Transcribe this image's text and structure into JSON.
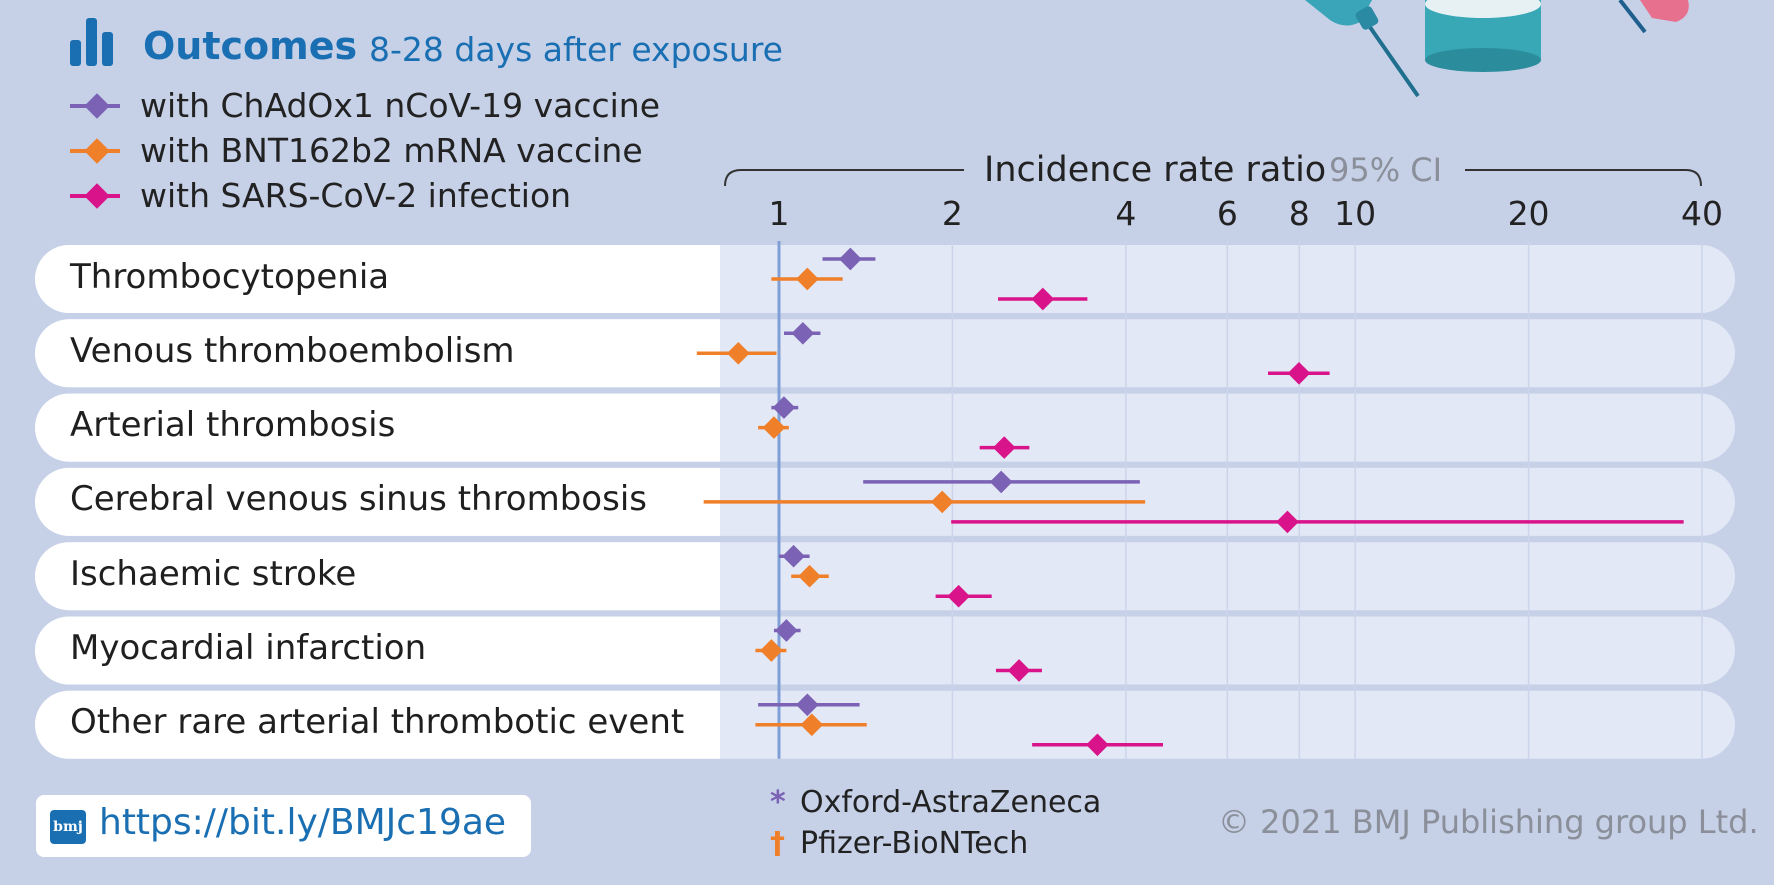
{
  "header": {
    "title": "Outcomes",
    "subtitle": "8-28 days after exposure"
  },
  "legend": [
    {
      "label": "with ChAdOx1 nCoV-19 vaccine",
      "color": "#7b62b4"
    },
    {
      "label": "with BNT162b2 mRNA vaccine",
      "color": "#f07f2a"
    },
    {
      "label": "with SARS-CoV-2 infection",
      "color": "#d9148a"
    }
  ],
  "chart_data": {
    "type": "scatter",
    "subtype": "forest-plot",
    "xlabel": "Incidence rate ratio",
    "xlabel_note": "95% CI",
    "x_scale": "log",
    "xlim": [
      0.85,
      40
    ],
    "x_ticks": [
      1,
      2,
      4,
      6,
      8,
      10,
      20,
      40
    ],
    "x_tick_labels": [
      "1",
      "2",
      "4",
      "6",
      "8",
      "10",
      "20",
      "40"
    ],
    "reference_line": 1,
    "grid": true,
    "categories": [
      "Thrombocytopenia",
      "Venous thromboembolism",
      "Arterial thrombosis",
      "Cerebral venous sinus thrombosis",
      "Ischaemic stroke",
      "Myocardial infarction",
      "Other rare arterial thrombotic event"
    ],
    "series": [
      {
        "name": "with ChAdOx1 nCoV-19 vaccine",
        "color": "#7b62b4",
        "estimates": [
          1.33,
          1.1,
          1.02,
          2.43,
          1.06,
          1.03,
          1.12
        ],
        "ci_low": [
          1.19,
          1.02,
          0.97,
          1.4,
          1.0,
          0.98,
          0.92
        ],
        "ci_high": [
          1.47,
          1.18,
          1.08,
          4.23,
          1.13,
          1.09,
          1.38
        ]
      },
      {
        "name": "with BNT162b2 mRNA vaccine",
        "color": "#f07f2a",
        "estimates": [
          1.12,
          0.85,
          0.98,
          1.92,
          1.13,
          0.97,
          1.14
        ],
        "ci_low": [
          0.97,
          0.72,
          0.92,
          0.74,
          1.05,
          0.91,
          0.91
        ],
        "ci_high": [
          1.29,
          0.99,
          1.04,
          4.32,
          1.22,
          1.03,
          1.42
        ]
      },
      {
        "name": "with SARS-CoV-2 infection",
        "color": "#d9148a",
        "estimates": [
          2.87,
          7.99,
          2.46,
          7.63,
          2.05,
          2.61,
          3.57
        ],
        "ci_low": [
          2.4,
          7.06,
          2.23,
          1.99,
          1.87,
          2.38,
          2.75
        ],
        "ci_high": [
          3.43,
          9.03,
          2.72,
          37.17,
          2.34,
          2.86,
          4.64
        ]
      }
    ]
  },
  "footer": {
    "logo_text": "bmj",
    "link": "https://bit.ly/BMJc19ae",
    "notes": [
      {
        "mark": "*",
        "label": "Oxford-AstraZeneca",
        "color": "#7b62b4"
      },
      {
        "mark": "†",
        "label": "Pfizer-BioNTech",
        "color": "#f07f2a"
      }
    ],
    "copyright": "© 2021 BMJ Publishing group Ltd."
  },
  "icons": [
    "bar-chart-icon",
    "syringe-illustration",
    "vial-illustration"
  ],
  "colors": {
    "background": "#c6d1e8",
    "plot_area": "#e2e8f5",
    "label_band": "#ffffff",
    "accent": "#1a6fb3",
    "reference_line": "#7f9fd6"
  }
}
